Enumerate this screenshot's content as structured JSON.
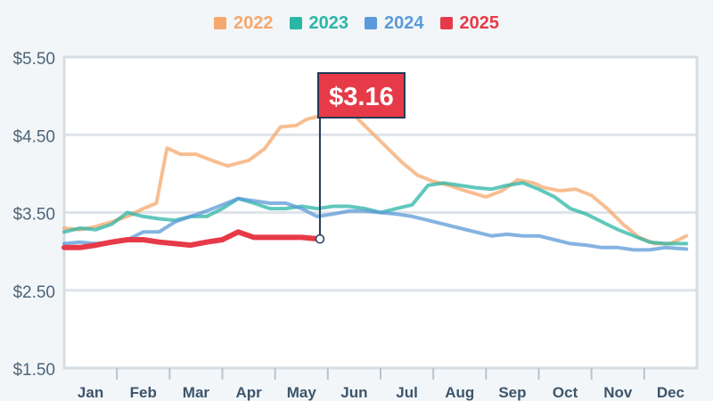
{
  "chart_data": {
    "type": "line",
    "title": "",
    "xlabel": "",
    "ylabel": "",
    "ylim": [
      1.5,
      5.5
    ],
    "y_ticks": [
      {
        "value": 5.5,
        "label": "$5.50"
      },
      {
        "value": 4.5,
        "label": "$4.50"
      },
      {
        "value": 3.5,
        "label": "$3.50"
      },
      {
        "value": 2.5,
        "label": "$2.50"
      },
      {
        "value": 1.5,
        "label": "$1.50"
      }
    ],
    "categories": [
      "Jan",
      "Feb",
      "Mar",
      "Apr",
      "May",
      "Jun",
      "Jul",
      "Aug",
      "Sep",
      "Oct",
      "Nov",
      "Dec"
    ],
    "grid": "horizontal",
    "legend_position": "top-center",
    "series": [
      {
        "name": "2022",
        "color": "#f4a86e",
        "x": [
          0.0,
          0.3,
          0.6,
          0.9,
          1.2,
          1.5,
          1.75,
          1.95,
          2.2,
          2.5,
          2.8,
          3.1,
          3.5,
          3.8,
          4.1,
          4.4,
          4.6,
          4.9,
          5.2,
          5.5,
          5.8,
          6.1,
          6.4,
          6.7,
          7.0,
          7.3,
          7.6,
          8.0,
          8.3,
          8.6,
          8.9,
          9.1,
          9.4,
          9.7,
          10.0,
          10.3,
          10.6,
          10.9,
          11.2,
          11.5,
          11.8
        ],
        "y": [
          3.3,
          3.28,
          3.32,
          3.38,
          3.45,
          3.55,
          3.62,
          4.33,
          4.25,
          4.25,
          4.17,
          4.1,
          4.17,
          4.32,
          4.6,
          4.62,
          4.7,
          4.75,
          4.8,
          4.75,
          4.55,
          4.35,
          4.15,
          3.98,
          3.9,
          3.85,
          3.78,
          3.7,
          3.78,
          3.92,
          3.88,
          3.82,
          3.78,
          3.8,
          3.72,
          3.55,
          3.35,
          3.18,
          3.1,
          3.1,
          3.2
        ]
      },
      {
        "name": "2023",
        "color": "#2bb5a5",
        "x": [
          0.0,
          0.3,
          0.6,
          0.9,
          1.2,
          1.5,
          1.8,
          2.1,
          2.4,
          2.7,
          3.0,
          3.3,
          3.6,
          3.9,
          4.2,
          4.5,
          4.8,
          5.1,
          5.4,
          5.7,
          6.0,
          6.3,
          6.6,
          6.9,
          7.2,
          7.5,
          7.8,
          8.1,
          8.4,
          8.7,
          9.0,
          9.3,
          9.6,
          9.9,
          10.2,
          10.5,
          10.8,
          11.1,
          11.4,
          11.8
        ],
        "y": [
          3.25,
          3.3,
          3.28,
          3.35,
          3.5,
          3.45,
          3.42,
          3.4,
          3.45,
          3.45,
          3.55,
          3.68,
          3.62,
          3.55,
          3.55,
          3.58,
          3.55,
          3.58,
          3.58,
          3.55,
          3.5,
          3.55,
          3.6,
          3.85,
          3.88,
          3.85,
          3.82,
          3.8,
          3.85,
          3.88,
          3.8,
          3.7,
          3.55,
          3.48,
          3.38,
          3.28,
          3.2,
          3.12,
          3.1,
          3.1
        ]
      },
      {
        "name": "2024",
        "color": "#5b9ad8",
        "x": [
          0.0,
          0.3,
          0.6,
          0.9,
          1.2,
          1.5,
          1.8,
          2.1,
          2.4,
          2.7,
          3.0,
          3.3,
          3.6,
          3.9,
          4.2,
          4.5,
          4.8,
          5.1,
          5.4,
          5.7,
          6.0,
          6.3,
          6.6,
          6.9,
          7.2,
          7.5,
          7.8,
          8.1,
          8.4,
          8.7,
          9.0,
          9.3,
          9.6,
          9.9,
          10.2,
          10.5,
          10.8,
          11.1,
          11.4,
          11.8
        ],
        "y": [
          3.1,
          3.12,
          3.1,
          3.12,
          3.15,
          3.25,
          3.25,
          3.38,
          3.45,
          3.52,
          3.6,
          3.68,
          3.65,
          3.62,
          3.62,
          3.55,
          3.45,
          3.48,
          3.52,
          3.52,
          3.5,
          3.48,
          3.45,
          3.4,
          3.35,
          3.3,
          3.25,
          3.2,
          3.22,
          3.2,
          3.2,
          3.15,
          3.1,
          3.08,
          3.05,
          3.05,
          3.02,
          3.02,
          3.05,
          3.03
        ]
      },
      {
        "name": "2025",
        "color": "#e63a48",
        "x": [
          0.0,
          0.3,
          0.6,
          0.9,
          1.2,
          1.5,
          1.8,
          2.1,
          2.4,
          2.7,
          3.0,
          3.3,
          3.6,
          3.9,
          4.2,
          4.5,
          4.85
        ],
        "y": [
          3.05,
          3.05,
          3.08,
          3.12,
          3.15,
          3.15,
          3.12,
          3.1,
          3.08,
          3.12,
          3.15,
          3.25,
          3.18,
          3.18,
          3.18,
          3.18,
          3.16
        ]
      }
    ],
    "annotation": {
      "label": "$3.16",
      "series": "2025",
      "x": 4.85,
      "y": 3.16,
      "color": "#e63a48"
    }
  }
}
